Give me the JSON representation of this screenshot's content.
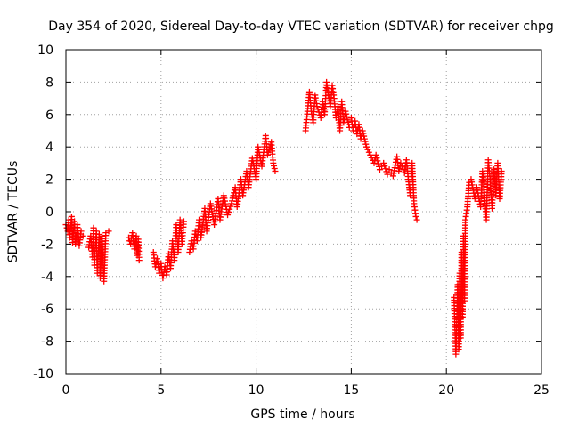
{
  "chart_data": {
    "type": "scatter",
    "title": "Day 354 of 2020, Sidereal Day-to-day VTEC variation (SDTVAR) for receiver chpg",
    "xlabel": "GPS time / hours",
    "ylabel": "SDTVAR / TECUs",
    "xlim": [
      0,
      25
    ],
    "ylim": [
      -10,
      10
    ],
    "xticks": [
      "0",
      "5",
      "10",
      "15",
      "20",
      "25"
    ],
    "yticks": [
      "-10",
      "-8",
      "-6",
      "-4",
      "-2",
      "0",
      "2",
      "4",
      "6",
      "8",
      "10"
    ],
    "grid": true,
    "marker": "+",
    "colors": {
      "points": "#ff0000",
      "grid": "#a0a0a0",
      "axes": "#000000"
    },
    "series": [
      {
        "name": "arc-1",
        "points": [
          [
            0,
            -0.8
          ],
          [
            0.1,
            -1.2
          ],
          [
            0.15,
            -0.5
          ],
          [
            0.2,
            -1.6
          ],
          [
            0.3,
            -0.3
          ],
          [
            0.35,
            -1.9
          ],
          [
            0.45,
            -0.6
          ],
          [
            0.5,
            -2.0
          ],
          [
            0.6,
            -0.8
          ],
          [
            0.7,
            -2.1
          ],
          [
            0.8,
            -1.2
          ],
          [
            0.9,
            -1.5
          ]
        ]
      },
      {
        "name": "arc-2",
        "points": [
          [
            1.2,
            -2.2
          ],
          [
            1.3,
            -1.5
          ],
          [
            1.4,
            -2.8
          ],
          [
            1.45,
            -1.0
          ],
          [
            1.5,
            -3.3
          ],
          [
            1.6,
            -1.2
          ],
          [
            1.65,
            -3.8
          ],
          [
            1.75,
            -1.4
          ],
          [
            1.8,
            -4.1
          ],
          [
            1.9,
            -1.5
          ],
          [
            2.0,
            -4.3
          ],
          [
            2.1,
            -1.3
          ],
          [
            2.25,
            -1.2
          ]
        ]
      },
      {
        "name": "arc-3",
        "points": [
          [
            3.3,
            -1.6
          ],
          [
            3.4,
            -2.0
          ],
          [
            3.5,
            -1.3
          ],
          [
            3.6,
            -2.3
          ],
          [
            3.7,
            -1.5
          ],
          [
            3.75,
            -2.7
          ],
          [
            3.8,
            -1.7
          ],
          [
            3.85,
            -3.0
          ]
        ]
      },
      {
        "name": "arc-4",
        "points": [
          [
            4.6,
            -2.5
          ],
          [
            4.7,
            -3.4
          ],
          [
            4.8,
            -2.9
          ],
          [
            4.9,
            -3.8
          ],
          [
            5.0,
            -3.2
          ],
          [
            5.1,
            -4.1
          ],
          [
            5.2,
            -3.4
          ],
          [
            5.3,
            -3.9
          ],
          [
            5.4,
            -2.6
          ],
          [
            5.5,
            -3.5
          ],
          [
            5.6,
            -1.8
          ],
          [
            5.7,
            -3.0
          ],
          [
            5.8,
            -0.8
          ],
          [
            5.9,
            -2.5
          ],
          [
            6.0,
            -0.5
          ],
          [
            6.1,
            -2.0
          ],
          [
            6.2,
            -0.6
          ]
        ]
      },
      {
        "name": "arc-5",
        "points": [
          [
            6.5,
            -2.5
          ],
          [
            6.6,
            -1.8
          ],
          [
            6.7,
            -2.3
          ],
          [
            6.8,
            -1.2
          ],
          [
            6.9,
            -1.8
          ],
          [
            7.0,
            -0.5
          ],
          [
            7.1,
            -1.6
          ],
          [
            7.3,
            0.2
          ],
          [
            7.4,
            -1.2
          ],
          [
            7.6,
            0.5
          ],
          [
            7.8,
            -0.8
          ],
          [
            8.0,
            0.8
          ],
          [
            8.1,
            -0.5
          ],
          [
            8.3,
            1.0
          ],
          [
            8.5,
            -0.2
          ],
          [
            8.7,
            0.5
          ],
          [
            8.9,
            1.5
          ],
          [
            9.0,
            0.3
          ],
          [
            9.2,
            2.0
          ],
          [
            9.3,
            1.0
          ],
          [
            9.5,
            2.5
          ],
          [
            9.6,
            1.5
          ],
          [
            9.8,
            3.3
          ],
          [
            10.0,
            2.0
          ],
          [
            10.1,
            4.0
          ],
          [
            10.3,
            2.8
          ],
          [
            10.5,
            4.7
          ],
          [
            10.6,
            3.5
          ],
          [
            10.8,
            4.3
          ],
          [
            10.9,
            3.0
          ],
          [
            11.0,
            2.5
          ]
        ]
      },
      {
        "name": "arc-6",
        "points": [
          [
            12.6,
            5.0
          ],
          [
            12.8,
            7.4
          ],
          [
            12.9,
            6.2
          ],
          [
            13.0,
            5.5
          ],
          [
            13.1,
            7.2
          ],
          [
            13.2,
            6.5
          ],
          [
            13.4,
            5.8
          ],
          [
            13.5,
            6.8
          ],
          [
            13.6,
            6.0
          ],
          [
            13.7,
            8.0
          ],
          [
            13.8,
            7.2
          ],
          [
            13.9,
            6.5
          ],
          [
            14.0,
            7.8
          ],
          [
            14.1,
            7.0
          ],
          [
            14.2,
            5.8
          ],
          [
            14.3,
            6.5
          ],
          [
            14.4,
            5.0
          ],
          [
            14.5,
            6.8
          ],
          [
            14.6,
            5.5
          ],
          [
            14.7,
            6.2
          ],
          [
            14.9,
            5.2
          ]
        ]
      },
      {
        "name": "arc-7",
        "points": [
          [
            15.0,
            5.8
          ],
          [
            15.1,
            5.0
          ],
          [
            15.2,
            5.6
          ],
          [
            15.3,
            4.8
          ],
          [
            15.4,
            5.4
          ],
          [
            15.5,
            4.5
          ],
          [
            15.6,
            5.0
          ],
          [
            15.8,
            4.0
          ],
          [
            16.0,
            3.5
          ],
          [
            16.2,
            3.0
          ],
          [
            16.3,
            3.5
          ],
          [
            16.5,
            2.6
          ],
          [
            16.7,
            3.0
          ],
          [
            16.9,
            2.3
          ],
          [
            17.0,
            2.6
          ],
          [
            17.2,
            2.2
          ],
          [
            17.4,
            3.4
          ],
          [
            17.5,
            2.5
          ],
          [
            17.6,
            3.0
          ],
          [
            17.8,
            2.4
          ],
          [
            17.9,
            3.2
          ],
          [
            18.0,
            2.0
          ],
          [
            18.1,
            1.0
          ],
          [
            18.2,
            3.0
          ],
          [
            18.3,
            0.5
          ],
          [
            18.4,
            -0.3
          ],
          [
            18.45,
            -0.5
          ]
        ]
      },
      {
        "name": "arc-8",
        "points": [
          [
            20.4,
            -5.3
          ],
          [
            20.5,
            -8.8
          ],
          [
            20.6,
            -4.5
          ],
          [
            20.65,
            -8.5
          ],
          [
            20.7,
            -3.8
          ],
          [
            20.75,
            -7.8
          ],
          [
            20.8,
            -2.5
          ],
          [
            20.85,
            -6.5
          ],
          [
            20.9,
            -1.5
          ],
          [
            20.95,
            -5.5
          ],
          [
            21.0,
            -0.5
          ],
          [
            21.1,
            0.3
          ],
          [
            21.2,
            1.8
          ],
          [
            21.3,
            2.0
          ],
          [
            21.5,
            0.8
          ],
          [
            21.6,
            1.5
          ],
          [
            21.8,
            0.3
          ],
          [
            21.9,
            2.5
          ],
          [
            22.0,
            1.2
          ],
          [
            22.1,
            -0.5
          ],
          [
            22.2,
            3.2
          ],
          [
            22.3,
            2.0
          ],
          [
            22.4,
            0.2
          ],
          [
            22.5,
            2.6
          ],
          [
            22.6,
            1.0
          ],
          [
            22.7,
            3.0
          ],
          [
            22.8,
            0.8
          ],
          [
            22.9,
            2.5
          ]
        ]
      }
    ]
  }
}
